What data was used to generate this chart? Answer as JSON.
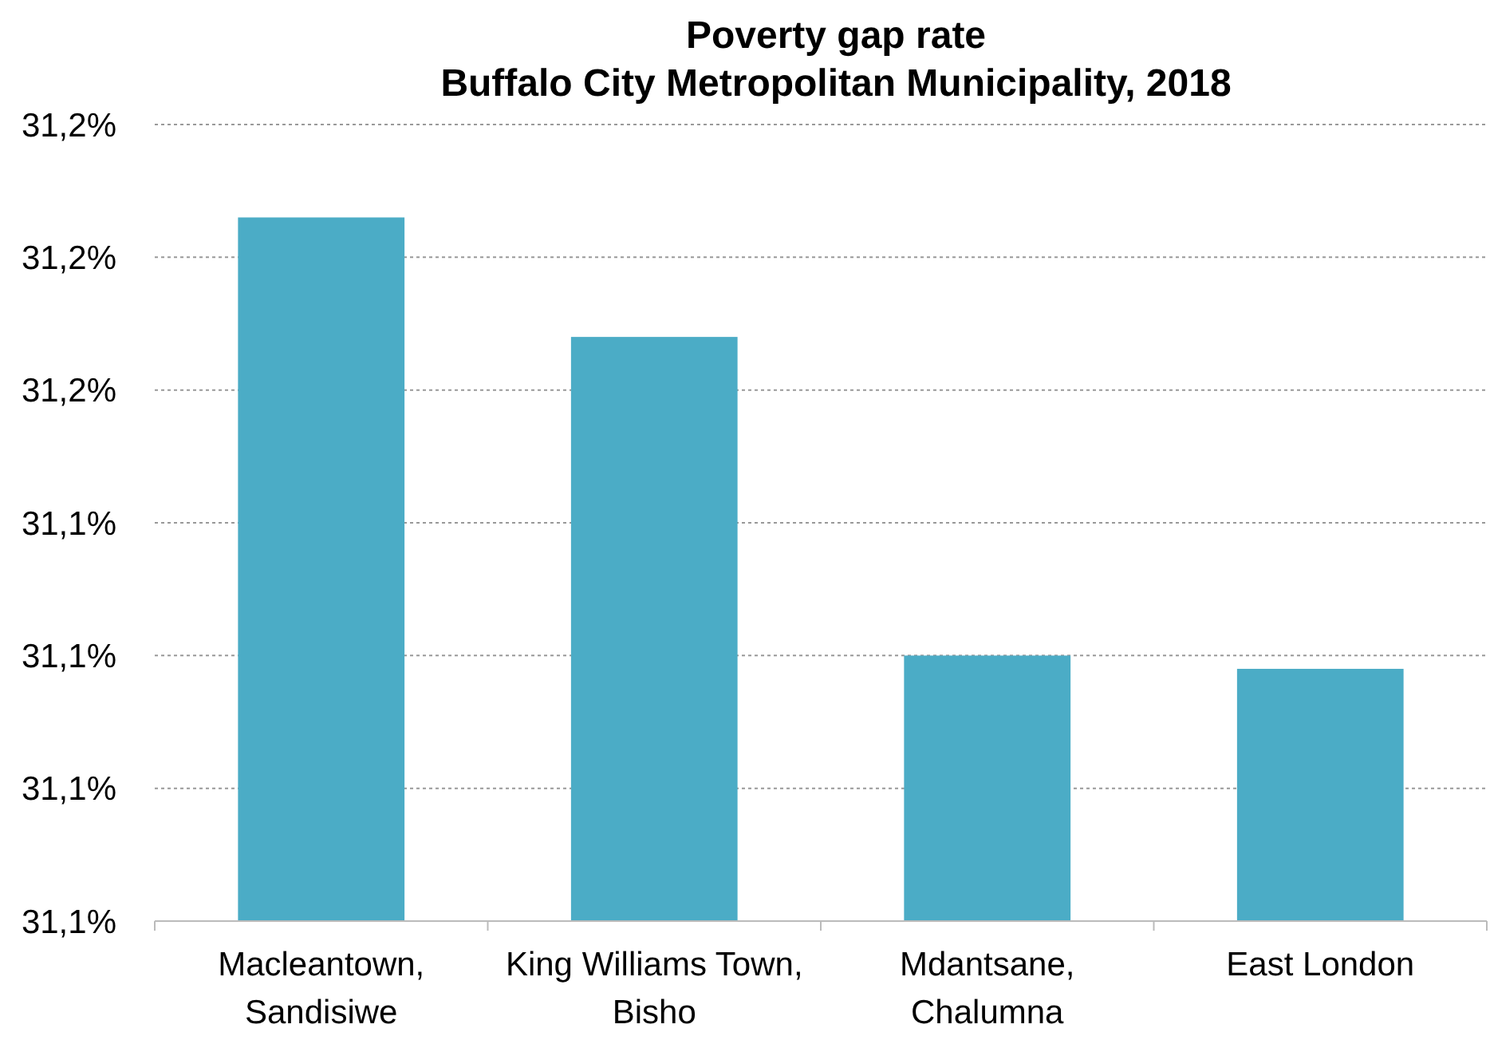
{
  "chart_data": {
    "type": "bar",
    "title": "Poverty gap rate\nBuffalo City Metropolitan Municipality, 2018",
    "categories": [
      "Macleantown,\nSandisiwe",
      "King Williams Town,\nBisho",
      "Mdantsane,\nChalumna",
      "East London"
    ],
    "values": [
      31.186,
      31.168,
      31.12,
      31.118
    ],
    "color": "#4bacc6",
    "ylim": [
      31.08,
      31.2
    ],
    "yticks": [
      {
        "value": 31.08,
        "label": "31,1%"
      },
      {
        "value": 31.1,
        "label": "31,1%"
      },
      {
        "value": 31.12,
        "label": "31,1%"
      },
      {
        "value": 31.14,
        "label": "31,1%"
      },
      {
        "value": 31.16,
        "label": "31,2%"
      },
      {
        "value": 31.18,
        "label": "31,2%"
      },
      {
        "value": 31.2,
        "label": "31,2%"
      }
    ],
    "grid": "y"
  }
}
